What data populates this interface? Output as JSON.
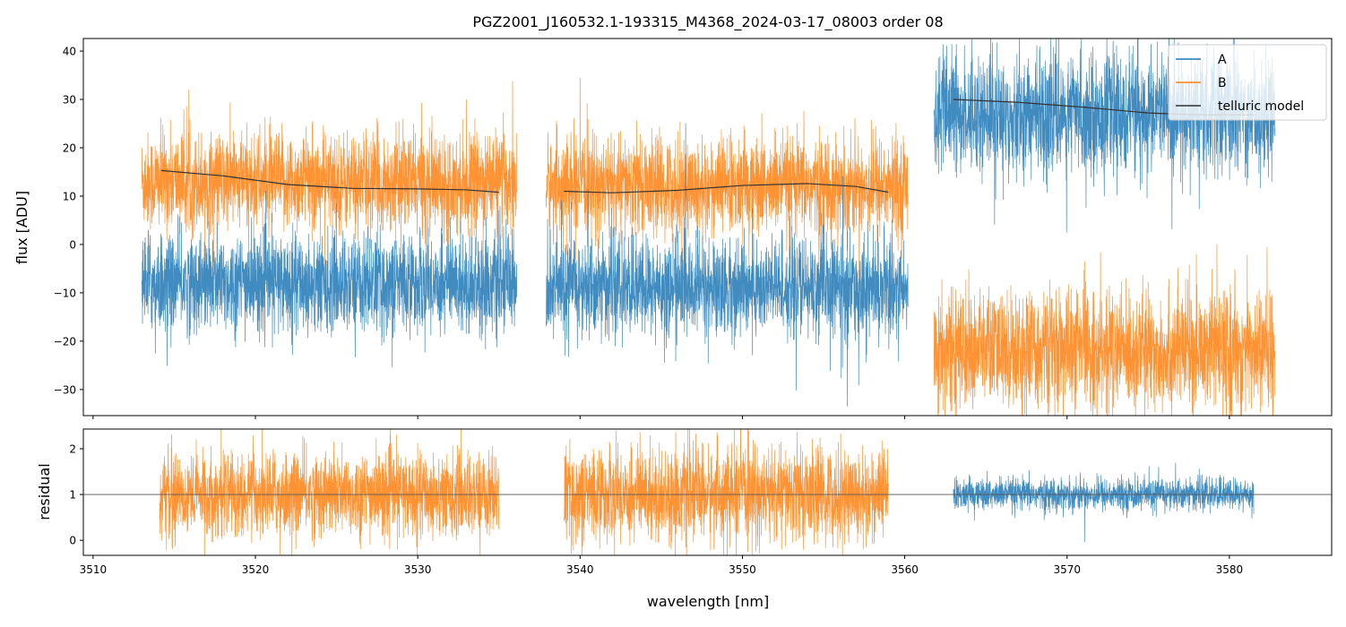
{
  "chart_data": {
    "type": "line",
    "title": "PGZ2001_J160532.1-193315_M4368_2024-03-17_08003  order 08",
    "xlabel": "wavelength [nm]",
    "xlim": [
      3509.4,
      3586.3
    ],
    "x_ticks": [
      "3510",
      "3520",
      "3530",
      "3540",
      "3550",
      "3560",
      "3570",
      "3580"
    ],
    "legend": {
      "placement": "top-right",
      "entries": [
        "A",
        "B",
        "telluric model"
      ]
    },
    "colors": {
      "A": "#1f77b4",
      "B": "#ff7f0e",
      "model": "#333333"
    },
    "panels": [
      {
        "name": "flux",
        "ylabel": "flux [ADU]",
        "ylim": [
          -35.4,
          42.6
        ],
        "y_ticks": [
          "−30",
          "−20",
          "−10",
          "0",
          "10",
          "20",
          "30",
          "40"
        ],
        "y_tick_values": [
          -30,
          -20,
          -10,
          0,
          10,
          20,
          30,
          40
        ],
        "segments": [
          {
            "x_range": [
              3513.0,
              3536.1
            ],
            "A_mean": -8,
            "A_noise": 5,
            "B_mean": 13,
            "B_noise": 5,
            "model": [
              [
                3514.2,
                15.3
              ],
              [
                3518,
                14.2
              ],
              [
                3522,
                12.4
              ],
              [
                3526,
                11.6
              ],
              [
                3530,
                11.5
              ],
              [
                3533,
                11.3
              ],
              [
                3535,
                10.8
              ]
            ]
          },
          {
            "x_range": [
              3537.9,
              3560.2
            ],
            "A_mean": -9,
            "A_noise": 5,
            "B_mean": 12,
            "B_noise": 5,
            "model": [
              [
                3539,
                11.0
              ],
              [
                3542,
                10.7
              ],
              [
                3546,
                11.2
              ],
              [
                3550,
                12.2
              ],
              [
                3554,
                12.6
              ],
              [
                3557,
                12.0
              ],
              [
                3559,
                10.8
              ]
            ]
          },
          {
            "x_range": [
              3561.8,
              3582.8
            ],
            "A_mean": 27,
            "A_noise": 6,
            "B_mean": -22,
            "B_noise": 6,
            "model": [
              [
                3563,
                30.0
              ],
              [
                3567,
                29.4
              ],
              [
                3571,
                28.4
              ],
              [
                3575,
                27.2
              ],
              [
                3578,
                26.8
              ],
              [
                3581.5,
                26.8
              ]
            ]
          }
        ]
      },
      {
        "name": "residual",
        "ylabel": "residual",
        "ylim": [
          -0.33,
          2.43
        ],
        "y_ticks": [
          "0",
          "1",
          "2"
        ],
        "y_tick_values": [
          0,
          1,
          2
        ],
        "reference_line": 1,
        "segments": [
          {
            "series": "B",
            "x_range": [
              3514.1,
              3535.0
            ],
            "mean": 1,
            "noise": 0.45
          },
          {
            "series": "B",
            "x_range": [
              3539.0,
              3559.0
            ],
            "mean": 1,
            "noise": 0.5
          },
          {
            "series": "A",
            "x_range": [
              3563.0,
              3581.5
            ],
            "mean": 1,
            "noise": 0.17
          }
        ]
      }
    ]
  }
}
